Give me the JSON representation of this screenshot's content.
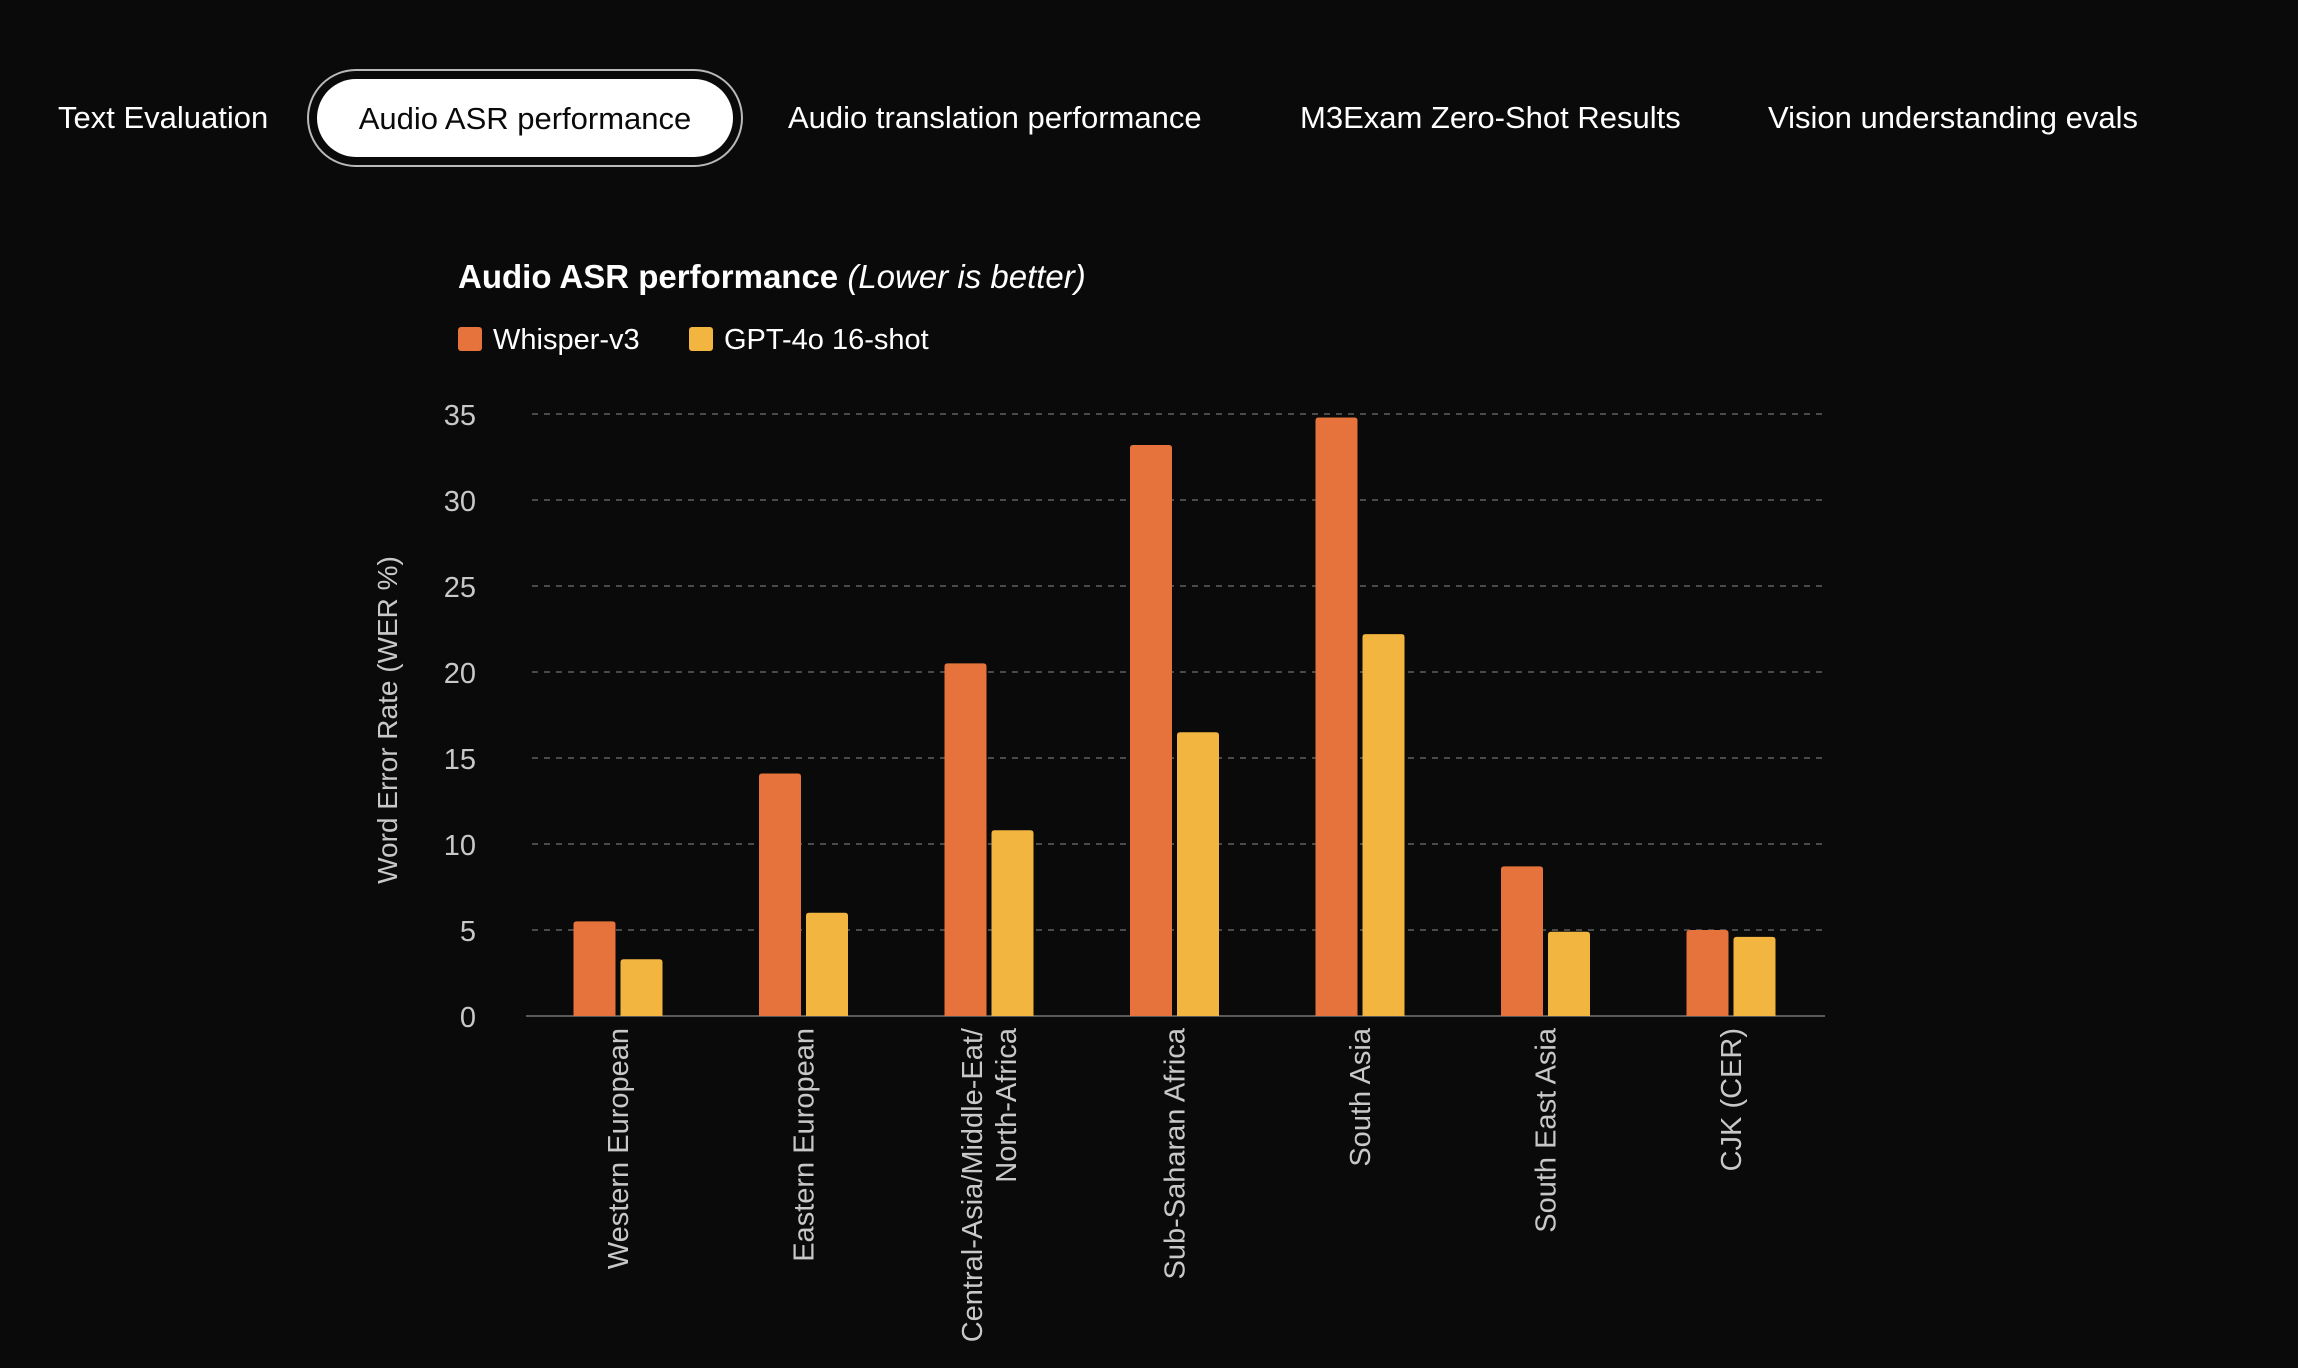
{
  "tabs": [
    {
      "label": "Text Evaluation",
      "active": false
    },
    {
      "label": "Audio ASR performance",
      "active": true
    },
    {
      "label": "Audio translation performance",
      "active": false
    },
    {
      "label": "M3Exam Zero-Shot Results",
      "active": false
    },
    {
      "label": "Vision understanding evals",
      "active": false
    }
  ],
  "colors": {
    "background": "#0a0a0a",
    "whisper": "#e5733b",
    "gpt4o": "#f2b53f",
    "grid": "#4a4a4a",
    "axis_text": "#c8c8c8"
  },
  "chart_data": {
    "type": "bar",
    "title": "Audio ASR performance",
    "subtitle": "(Lower is better)",
    "xlabel": "",
    "ylabel": "Word Error Rate (WER %)",
    "ylim": [
      0,
      35
    ],
    "yticks": [
      0,
      5,
      10,
      15,
      20,
      25,
      30,
      35
    ],
    "grid": true,
    "legend_position": "top-left",
    "categories": [
      [
        "Western European"
      ],
      [
        "Eastern European"
      ],
      [
        "Central-Asia/Middle-Eat/",
        "North-Africa"
      ],
      [
        "Sub-Saharan Africa"
      ],
      [
        "South Asia"
      ],
      [
        "South East Asia"
      ],
      [
        "CJK (CER)"
      ]
    ],
    "series": [
      {
        "name": "Whisper-v3",
        "color": "#e5733b",
        "values": [
          5.5,
          14.1,
          20.5,
          33.2,
          34.8,
          8.7,
          5.0
        ]
      },
      {
        "name": "GPT-4o 16-shot",
        "color": "#f2b53f",
        "values": [
          3.3,
          6.0,
          10.8,
          16.5,
          22.2,
          4.9,
          4.6
        ]
      }
    ]
  }
}
